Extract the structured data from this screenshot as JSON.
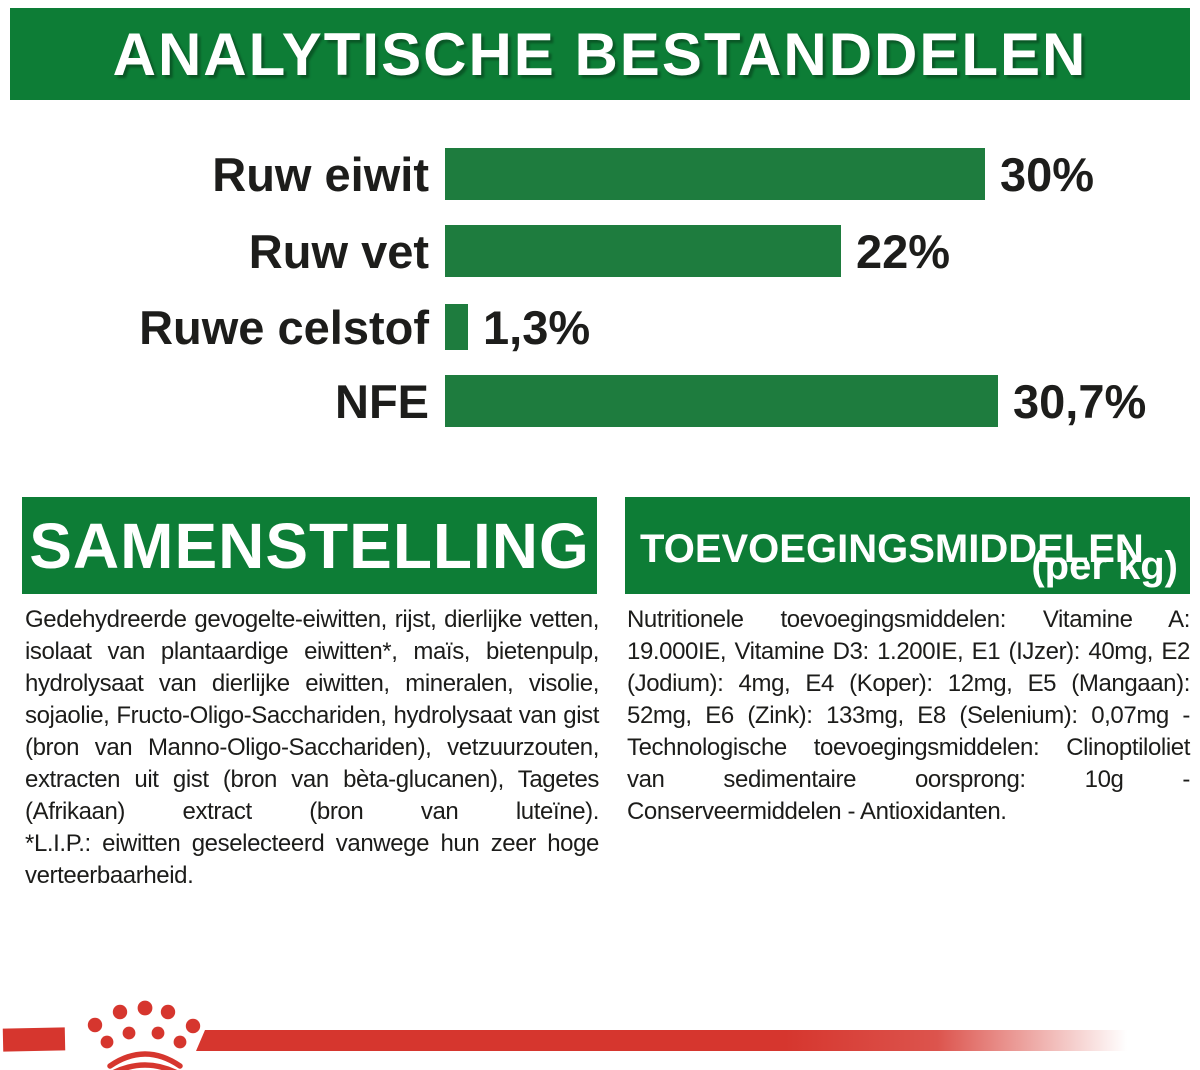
{
  "header": {
    "title": "ANALYTISCHE BESTANDDELEN"
  },
  "chart_data": {
    "type": "bar",
    "orientation": "horizontal",
    "title": "ANALYTISCHE BESTANDDELEN",
    "categories": [
      "Ruw eiwit",
      "Ruw vet",
      "Ruwe celstof",
      "NFE"
    ],
    "values": [
      30,
      22,
      1.3,
      30.7
    ],
    "value_labels": [
      "30%",
      "22%",
      "1,3%",
      "30,7%"
    ],
    "unit": "%",
    "xlim": [
      0,
      32
    ],
    "grid": false,
    "bar_color": "#1e7c3e",
    "label_color": "#1d1d1b"
  },
  "composition": {
    "title": "SAMENSTELLING",
    "body": "Gedehydreerde gevogelte-eiwitten, rijst, dierlijke vetten, isolaat van plantaardige eiwitten*, maïs, bietenpulp, hydrolysaat van dierlijke eiwitten, mineralen, visolie, sojaolie, Fructo-Oligo-Sacchariden, hydrolysaat van gist (bron van Manno-Oligo-Sacchariden), vetzuurzouten, extracten uit gist (bron van bèta-glucanen), Tagetes (Afrikaan) extract (bron van luteïne).",
    "note": "*L.I.P.: eiwitten geselecteerd vanwege hun zeer hoge verteerbaarheid."
  },
  "additives": {
    "title": "TOEVOEGINGSMIDDELEN",
    "subtitle": "(per kg)",
    "body": "Nutritionele toevoegingsmiddelen: Vitamine A: 19.000IE, Vitamine D3: 1.200IE, E1 (IJzer): 40mg, E2 (Jodium): 4mg, E4 (Koper): 12mg, E5 (Mangaan): 52mg, E6 (Zink): 133mg, E8 (Selenium): 0,07mg - Technologische toevoegingsmiddelen: Clinoptiloliet van sedimentaire oorsprong: 10g - Conserveermiddelen - Antioxidanten."
  },
  "colors": {
    "banner_green": "#0d7d36",
    "bar_green": "#1e7c3e",
    "brand_red": "#d6362e",
    "text_black": "#1c1c1a"
  }
}
